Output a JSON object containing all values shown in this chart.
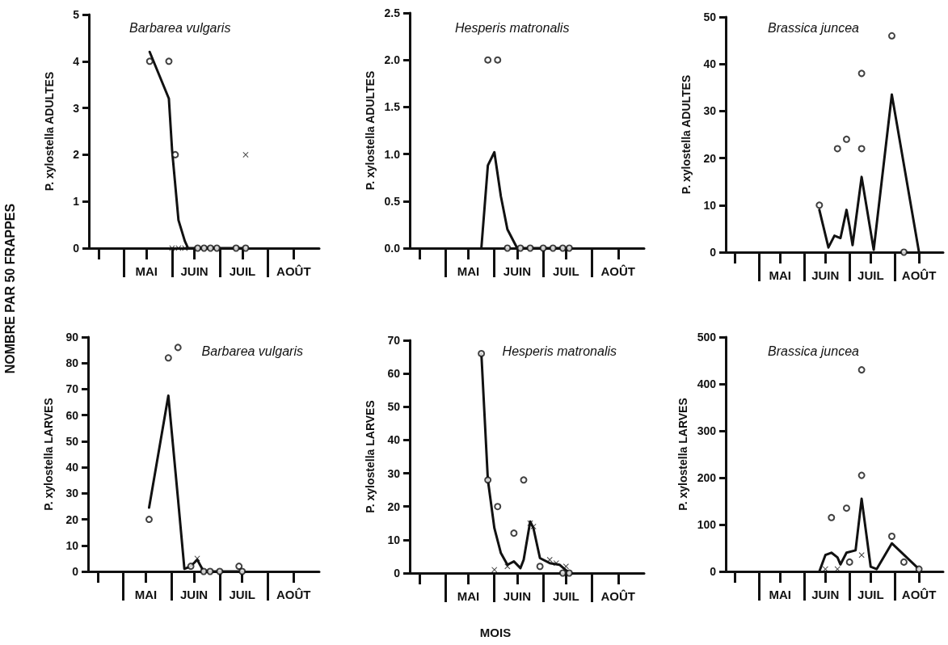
{
  "chart_data": [
    {
      "type": "line",
      "title": "Barbarea vulgaris",
      "ylabel": "P. xylostella ADULTES",
      "annotations": [
        "NOMBRE PAR 50 FRAPPES"
      ],
      "categories": [
        null,
        null,
        null,
        null,
        null,
        null,
        null,
        null,
        null,
        null,
        null,
        null,
        null,
        null,
        null,
        null,
        null,
        null,
        "MAI",
        null,
        null,
        null,
        null,
        null,
        null,
        null,
        null,
        null,
        null,
        null,
        null,
        null,
        null,
        "JUIN",
        null,
        null,
        null,
        null,
        null,
        null,
        null,
        null,
        null,
        null,
        null,
        null,
        null,
        null,
        "JUIL",
        null,
        null,
        null,
        null,
        null,
        null,
        null,
        null,
        null,
        null,
        null,
        null,
        null,
        null,
        null,
        "AOÛT",
        null,
        null,
        null,
        null,
        null,
        null,
        null,
        null
      ],
      "ylim": [
        0,
        5
      ],
      "yticks": [
        0,
        1,
        2,
        3,
        4,
        5
      ],
      "line_style": "solid",
      "series": [
        {
          "type": "line",
          "marker": "none",
          "color": "#111111",
          "values": [
            null,
            null,
            null,
            null,
            null,
            null,
            null,
            null,
            null,
            null,
            null,
            null,
            null,
            null,
            null,
            null,
            null,
            null,
            null,
            4.2,
            null,
            null,
            null,
            null,
            null,
            3.2,
            2.1,
            null,
            0.6,
            null,
            0.15,
            0,
            null,
            null,
            null,
            null,
            null,
            null,
            null,
            null,
            null,
            null,
            null,
            null,
            null,
            null,
            null,
            null,
            null,
            0,
            null,
            null,
            null,
            null,
            null,
            null,
            null,
            null,
            null,
            null,
            null,
            null,
            null,
            null,
            null,
            null,
            null,
            null,
            null,
            null,
            null,
            null,
            null
          ]
        },
        {
          "type": "scatter",
          "marker": "circle",
          "color": "#111111",
          "values": [
            null,
            null,
            null,
            null,
            null,
            null,
            null,
            null,
            null,
            null,
            null,
            null,
            null,
            null,
            null,
            null,
            null,
            null,
            null,
            4,
            null,
            null,
            null,
            null,
            null,
            4,
            null,
            2,
            null,
            null,
            null,
            null,
            null,
            null,
            0,
            null,
            0,
            null,
            0,
            null,
            0,
            null,
            null,
            null,
            null,
            null,
            0,
            null,
            null,
            0,
            null,
            null,
            null,
            null,
            null,
            null,
            null,
            null,
            null,
            null,
            null,
            null,
            null,
            null,
            null,
            null,
            null,
            null,
            null,
            null,
            null,
            null,
            null
          ]
        },
        {
          "type": "scatter",
          "marker": "cross",
          "color": "#111111",
          "values": [
            null,
            null,
            null,
            null,
            null,
            null,
            null,
            null,
            null,
            null,
            null,
            null,
            null,
            null,
            null,
            null,
            null,
            null,
            null,
            null,
            null,
            null,
            null,
            null,
            null,
            null,
            0,
            null,
            0,
            null,
            0,
            null,
            null,
            null,
            null,
            null,
            null,
            null,
            null,
            null,
            null,
            null,
            null,
            null,
            null,
            null,
            null,
            null,
            null,
            2,
            null,
            null,
            null,
            null,
            null,
            null,
            null,
            null,
            null,
            null,
            null,
            null,
            null,
            null,
            null,
            null,
            null,
            null,
            null,
            null,
            null,
            null,
            null
          ]
        }
      ]
    },
    {
      "type": "line",
      "title": "Hesperis matronalis",
      "ylabel": "P. xylostella ADULTES",
      "categories": [
        null,
        null,
        null,
        null,
        null,
        null,
        null,
        null,
        null,
        null,
        null,
        null,
        null,
        null,
        null,
        null,
        null,
        null,
        "MAI",
        null,
        null,
        null,
        null,
        null,
        null,
        null,
        null,
        null,
        null,
        null,
        null,
        null,
        null,
        "JUIN",
        null,
        null,
        null,
        null,
        null,
        null,
        null,
        null,
        null,
        null,
        null,
        null,
        null,
        null,
        "JUIL",
        null,
        null,
        null,
        null,
        null,
        null,
        null,
        null,
        null,
        null,
        null,
        null,
        null,
        null,
        null,
        "AOÛT",
        null,
        null,
        null,
        null,
        null,
        null,
        null,
        null
      ],
      "ylim": [
        0,
        2.5
      ],
      "yticks": [
        {
          "value": 0,
          "label": "0.0"
        },
        0.5,
        {
          "value": 1,
          "label": "1.0"
        },
        1.5,
        {
          "value": 2,
          "label": "2.0"
        },
        2.5
      ],
      "line_style": "solid",
      "series": [
        {
          "type": "line",
          "marker": "none",
          "color": "#111111",
          "values": [
            null,
            null,
            null,
            null,
            null,
            null,
            null,
            null,
            null,
            null,
            null,
            null,
            null,
            null,
            null,
            null,
            null,
            null,
            null,
            null,
            null,
            null,
            0,
            null,
            0.88,
            null,
            1.02,
            null,
            0.55,
            null,
            0.2,
            null,
            null,
            0,
            null,
            null,
            null,
            null,
            null,
            null,
            null,
            null,
            null,
            null,
            null,
            null,
            null,
            null,
            null,
            0,
            null,
            null,
            null,
            null,
            null,
            null,
            null,
            null,
            null,
            null,
            null,
            null,
            null,
            null,
            null,
            null,
            null,
            null,
            null,
            null,
            null,
            null,
            null
          ]
        },
        {
          "type": "scatter",
          "marker": "circle",
          "color": "#111111",
          "values": [
            null,
            null,
            null,
            null,
            null,
            null,
            null,
            null,
            null,
            null,
            null,
            null,
            null,
            null,
            null,
            null,
            null,
            null,
            null,
            null,
            null,
            null,
            null,
            null,
            2,
            null,
            null,
            2,
            null,
            null,
            0,
            null,
            null,
            null,
            0,
            null,
            null,
            0,
            null,
            null,
            null,
            0,
            null,
            null,
            0,
            null,
            null,
            0,
            null,
            0,
            null,
            null,
            null,
            null,
            null,
            null,
            null,
            null,
            null,
            null,
            null,
            null,
            null,
            null,
            null,
            null,
            null,
            null,
            null,
            null,
            null,
            null,
            null
          ]
        }
      ]
    },
    {
      "type": "line",
      "title": "Brassica juncea",
      "ylabel": "P. xylostella ADULTES",
      "categories": [
        null,
        null,
        null,
        null,
        null,
        null,
        null,
        null,
        null,
        null,
        null,
        null,
        null,
        null,
        null,
        null,
        null,
        null,
        "MAI",
        null,
        null,
        null,
        null,
        null,
        null,
        null,
        null,
        null,
        null,
        null,
        null,
        null,
        null,
        "JUIN",
        null,
        null,
        null,
        null,
        null,
        null,
        null,
        null,
        null,
        null,
        null,
        null,
        null,
        null,
        "JUIL",
        null,
        null,
        null,
        null,
        null,
        null,
        null,
        null,
        null,
        null,
        null,
        null,
        null,
        null,
        null,
        "AOÛT",
        null,
        null,
        null,
        null,
        null,
        null,
        null,
        null
      ],
      "ylim": [
        0,
        50
      ],
      "yticks": [
        0,
        10,
        20,
        30,
        40,
        50
      ],
      "line_style": "solid",
      "series": [
        {
          "type": "line",
          "marker": "none",
          "color": "#111111",
          "values": [
            null,
            null,
            null,
            null,
            null,
            null,
            null,
            null,
            null,
            null,
            null,
            null,
            null,
            null,
            null,
            null,
            null,
            null,
            null,
            null,
            null,
            null,
            null,
            null,
            null,
            null,
            null,
            null,
            null,
            null,
            null,
            9,
            null,
            null,
            1,
            null,
            3.5,
            null,
            3,
            6,
            9,
            5.5,
            1.5,
            null,
            null,
            16,
            null,
            null,
            null,
            0.5,
            null,
            null,
            null,
            null,
            null,
            33.5,
            null,
            null,
            null,
            null,
            null,
            null,
            null,
            null,
            0,
            null,
            null,
            null,
            null,
            null,
            null,
            null,
            null
          ]
        },
        {
          "type": "scatter",
          "marker": "circle",
          "color": "#111111",
          "values": [
            null,
            null,
            null,
            null,
            null,
            null,
            null,
            null,
            null,
            null,
            null,
            null,
            null,
            null,
            null,
            null,
            null,
            null,
            null,
            null,
            null,
            null,
            null,
            null,
            null,
            null,
            null,
            null,
            null,
            null,
            null,
            10,
            null,
            null,
            null,
            null,
            null,
            22,
            null,
            null,
            24,
            null,
            null,
            null,
            null,
            38,
            null,
            null,
            null,
            null,
            null,
            null,
            null,
            null,
            null,
            46,
            null,
            null,
            null,
            0,
            null,
            null,
            null,
            null,
            null,
            null,
            null,
            null,
            null,
            null,
            null,
            null,
            null
          ]
        },
        {
          "type": "scatter",
          "marker": "circle",
          "color": "#111111",
          "values": [
            null,
            null,
            null,
            null,
            null,
            null,
            null,
            null,
            null,
            null,
            null,
            null,
            null,
            null,
            null,
            null,
            null,
            null,
            null,
            null,
            null,
            null,
            null,
            null,
            null,
            null,
            null,
            null,
            null,
            null,
            null,
            null,
            null,
            null,
            null,
            null,
            null,
            null,
            null,
            null,
            null,
            null,
            null,
            null,
            null,
            22,
            null,
            null,
            null,
            null,
            null,
            null,
            null,
            null,
            null,
            null,
            null,
            null,
            null,
            null,
            null,
            null,
            null,
            null,
            null,
            null,
            null,
            null,
            null,
            null,
            null,
            null,
            null
          ]
        }
      ]
    },
    {
      "type": "line",
      "title": "Barbarea vulgaris",
      "ylabel": "P. xylostella LARVES",
      "categories": [
        null,
        null,
        null,
        null,
        null,
        null,
        null,
        null,
        null,
        null,
        null,
        null,
        null,
        null,
        null,
        null,
        null,
        null,
        "MAI",
        null,
        null,
        null,
        null,
        null,
        null,
        null,
        null,
        null,
        null,
        null,
        null,
        null,
        null,
        "JUIN",
        null,
        null,
        null,
        null,
        null,
        null,
        null,
        null,
        null,
        null,
        null,
        null,
        null,
        null,
        "JUIL",
        null,
        null,
        null,
        null,
        null,
        null,
        null,
        null,
        null,
        null,
        null,
        null,
        null,
        null,
        null,
        "AOÛT",
        null,
        null,
        null,
        null,
        null,
        null,
        null,
        null
      ],
      "ylim": [
        0,
        90
      ],
      "yticks": [
        0,
        10,
        20,
        30,
        40,
        50,
        60,
        70,
        80,
        90
      ],
      "line_style": "solid",
      "series": [
        {
          "type": "line",
          "marker": "none",
          "color": "#111111",
          "values": [
            null,
            null,
            null,
            null,
            null,
            null,
            null,
            null,
            null,
            null,
            null,
            null,
            null,
            null,
            null,
            null,
            null,
            null,
            null,
            24.5,
            null,
            null,
            null,
            null,
            null,
            67.5,
            null,
            null,
            28,
            null,
            1,
            null,
            2,
            null,
            4.5,
            null,
            0,
            null,
            null,
            null,
            null,
            null,
            null,
            null,
            null,
            null,
            null,
            null,
            0,
            null,
            null,
            null,
            null,
            null,
            null,
            null,
            null,
            null,
            null,
            null,
            null,
            null,
            null,
            null,
            null,
            null,
            null,
            null,
            null,
            null,
            null,
            null,
            null
          ]
        },
        {
          "type": "scatter",
          "marker": "circle",
          "color": "#111111",
          "values": [
            null,
            null,
            null,
            null,
            null,
            null,
            null,
            null,
            null,
            null,
            null,
            null,
            null,
            null,
            null,
            null,
            null,
            null,
            null,
            20,
            null,
            null,
            null,
            null,
            null,
            82,
            null,
            null,
            86,
            null,
            null,
            null,
            2,
            null,
            null,
            null,
            0,
            null,
            0,
            null,
            null,
            0,
            null,
            null,
            null,
            null,
            null,
            2,
            0,
            null,
            null,
            null,
            null,
            null,
            null,
            null,
            null,
            null,
            null,
            null,
            null,
            null,
            null,
            null,
            null,
            null,
            null,
            null,
            null,
            null,
            null,
            null,
            null
          ]
        },
        {
          "type": "scatter",
          "marker": "cross",
          "color": "#111111",
          "values": [
            null,
            null,
            null,
            null,
            null,
            null,
            null,
            null,
            null,
            null,
            null,
            null,
            null,
            null,
            null,
            null,
            null,
            null,
            null,
            null,
            null,
            null,
            null,
            null,
            null,
            null,
            null,
            null,
            null,
            null,
            null,
            null,
            null,
            null,
            5,
            null,
            null,
            null,
            null,
            null,
            null,
            null,
            null,
            null,
            null,
            null,
            null,
            null,
            null,
            null,
            null,
            null,
            null,
            null,
            null,
            null,
            null,
            null,
            null,
            null,
            null,
            null,
            null,
            null,
            null,
            null,
            null,
            null,
            null,
            null,
            null,
            null,
            null
          ]
        }
      ]
    },
    {
      "type": "line",
      "title": "Hesperis matronalis",
      "ylabel": "P. xylostella LARVES",
      "xlabel": "MOIS",
      "categories": [
        null,
        null,
        null,
        null,
        null,
        null,
        null,
        null,
        null,
        null,
        null,
        null,
        null,
        null,
        null,
        null,
        null,
        null,
        "MAI",
        null,
        null,
        null,
        null,
        null,
        null,
        null,
        null,
        null,
        null,
        null,
        null,
        null,
        null,
        "JUIN",
        null,
        null,
        null,
        null,
        null,
        null,
        null,
        null,
        null,
        null,
        null,
        null,
        null,
        null,
        "JUIL",
        null,
        null,
        null,
        null,
        null,
        null,
        null,
        null,
        null,
        null,
        null,
        null,
        null,
        null,
        null,
        "AOÛT",
        null,
        null,
        null,
        null,
        null,
        null,
        null,
        null
      ],
      "ylim": [
        0,
        70
      ],
      "yticks": [
        0,
        10,
        20,
        30,
        40,
        50,
        60,
        70
      ],
      "line_style": "solid",
      "series": [
        {
          "type": "line",
          "marker": "none",
          "color": "#111111",
          "values": [
            null,
            null,
            null,
            null,
            null,
            null,
            null,
            null,
            null,
            null,
            null,
            null,
            null,
            null,
            null,
            null,
            null,
            null,
            null,
            null,
            null,
            null,
            66,
            null,
            28,
            null,
            13.5,
            null,
            6,
            null,
            2.5,
            null,
            3.5,
            null,
            1.5,
            4,
            null,
            15.5,
            13.5,
            null,
            4.5,
            null,
            null,
            3,
            null,
            null,
            2.5,
            null,
            null,
            0,
            null,
            null,
            null,
            null,
            null,
            null,
            null,
            null,
            null,
            null,
            null,
            null,
            null,
            null,
            null,
            null,
            null,
            null,
            null,
            null,
            null,
            null,
            null
          ]
        },
        {
          "type": "scatter",
          "marker": "circle",
          "color": "#111111",
          "values": [
            null,
            null,
            null,
            null,
            null,
            null,
            null,
            null,
            null,
            null,
            null,
            null,
            null,
            null,
            null,
            null,
            null,
            null,
            null,
            null,
            null,
            null,
            66,
            null,
            28,
            null,
            null,
            20,
            null,
            null,
            null,
            null,
            12,
            null,
            null,
            28,
            null,
            null,
            null,
            null,
            2,
            null,
            null,
            null,
            null,
            null,
            null,
            0,
            null,
            0,
            null,
            null,
            null,
            null,
            null,
            null,
            null,
            null,
            null,
            null,
            null,
            null,
            null,
            null,
            null,
            null,
            null,
            null,
            null,
            null,
            null,
            null,
            null
          ]
        },
        {
          "type": "scatter",
          "marker": "cross",
          "color": "#111111",
          "values": [
            null,
            null,
            null,
            null,
            null,
            null,
            null,
            null,
            null,
            null,
            null,
            null,
            null,
            null,
            null,
            null,
            null,
            null,
            null,
            null,
            null,
            null,
            null,
            null,
            null,
            null,
            1,
            null,
            null,
            null,
            2,
            null,
            null,
            null,
            null,
            null,
            null,
            15,
            14,
            null,
            null,
            null,
            null,
            4,
            null,
            3,
            null,
            null,
            2,
            null,
            null,
            null,
            null,
            null,
            null,
            null,
            null,
            null,
            null,
            null,
            null,
            null,
            null,
            null,
            null,
            null,
            null,
            null,
            null,
            null,
            null,
            null,
            null
          ]
        }
      ]
    },
    {
      "type": "line",
      "title": "Brassica juncea",
      "ylabel": "P. xylostella LARVES",
      "categories": [
        null,
        null,
        null,
        null,
        null,
        null,
        null,
        null,
        null,
        null,
        null,
        null,
        null,
        null,
        null,
        null,
        null,
        null,
        "MAI",
        null,
        null,
        null,
        null,
        null,
        null,
        null,
        null,
        null,
        null,
        null,
        null,
        null,
        null,
        "JUIN",
        null,
        null,
        null,
        null,
        null,
        null,
        null,
        null,
        null,
        null,
        null,
        null,
        null,
        null,
        "JUIL",
        null,
        null,
        null,
        null,
        null,
        null,
        null,
        null,
        null,
        null,
        null,
        null,
        null,
        null,
        null,
        "AOÛT",
        null,
        null,
        null,
        null,
        null,
        null,
        null,
        null
      ],
      "ylim": [
        0,
        500
      ],
      "yticks": [
        0,
        100,
        200,
        300,
        400,
        500
      ],
      "line_style": "solid",
      "series": [
        {
          "type": "line",
          "marker": "none",
          "color": "#111111",
          "values": [
            null,
            null,
            null,
            null,
            null,
            null,
            null,
            null,
            null,
            null,
            null,
            null,
            null,
            null,
            null,
            null,
            null,
            null,
            null,
            null,
            null,
            null,
            null,
            null,
            null,
            null,
            null,
            null,
            null,
            null,
            null,
            0,
            null,
            35,
            null,
            40,
            null,
            30,
            15,
            null,
            40,
            null,
            null,
            45,
            null,
            155,
            null,
            null,
            10,
            null,
            5,
            null,
            null,
            null,
            null,
            60,
            null,
            null,
            null,
            null,
            null,
            null,
            null,
            null,
            5,
            null,
            null,
            null,
            null,
            null,
            null,
            null,
            null
          ]
        },
        {
          "type": "scatter",
          "marker": "circle",
          "color": "#111111",
          "values": [
            null,
            null,
            null,
            null,
            null,
            null,
            null,
            null,
            null,
            null,
            null,
            null,
            null,
            null,
            null,
            null,
            null,
            null,
            null,
            null,
            null,
            null,
            null,
            null,
            null,
            null,
            null,
            null,
            null,
            null,
            null,
            null,
            null,
            null,
            null,
            115,
            null,
            null,
            null,
            null,
            135,
            20,
            null,
            null,
            null,
            430,
            null,
            null,
            null,
            null,
            null,
            null,
            null,
            null,
            null,
            75,
            null,
            null,
            null,
            20,
            null,
            null,
            null,
            null,
            5,
            null,
            null,
            null,
            null,
            null,
            null,
            null,
            null
          ]
        },
        {
          "type": "scatter",
          "marker": "circle",
          "color": "#111111",
          "values": [
            null,
            null,
            null,
            null,
            null,
            null,
            null,
            null,
            null,
            null,
            null,
            null,
            null,
            null,
            null,
            null,
            null,
            null,
            null,
            null,
            null,
            null,
            null,
            null,
            null,
            null,
            null,
            null,
            null,
            null,
            null,
            null,
            null,
            null,
            null,
            null,
            null,
            null,
            null,
            null,
            null,
            null,
            null,
            null,
            null,
            205,
            null,
            null,
            null,
            null,
            null,
            null,
            null,
            null,
            null,
            null,
            null,
            null,
            null,
            null,
            null,
            null,
            null,
            null,
            null,
            null,
            null,
            null,
            null,
            null,
            null,
            null,
            null
          ]
        },
        {
          "type": "scatter",
          "marker": "cross",
          "color": "#111111",
          "values": [
            null,
            null,
            null,
            null,
            null,
            null,
            null,
            null,
            null,
            null,
            null,
            null,
            null,
            null,
            null,
            null,
            null,
            null,
            null,
            null,
            null,
            null,
            null,
            null,
            null,
            null,
            null,
            null,
            null,
            null,
            null,
            null,
            null,
            5,
            null,
            null,
            null,
            5,
            null,
            null,
            null,
            null,
            null,
            null,
            null,
            35,
            null,
            null,
            null,
            null,
            null,
            null,
            null,
            null,
            null,
            null,
            null,
            null,
            null,
            null,
            null,
            null,
            null,
            null,
            null,
            null,
            null,
            null,
            null,
            null,
            null,
            null,
            null
          ]
        }
      ]
    }
  ]
}
